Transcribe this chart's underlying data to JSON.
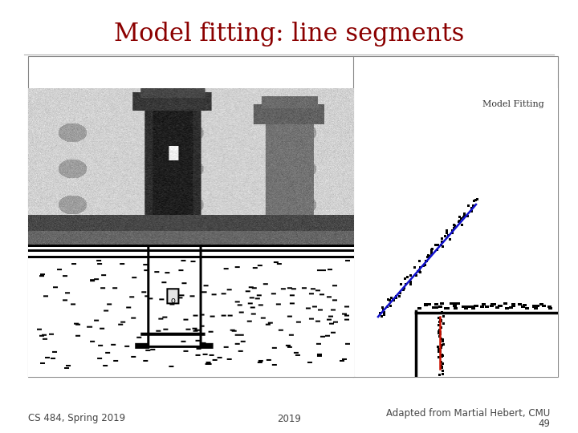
{
  "title": "Model fitting: line segments",
  "title_color": "#8B0000",
  "title_fontsize": 22,
  "footer_left": "CS 484, Spring 2019",
  "footer_center": "2019",
  "footer_right_line1": "Adapted from Martial Hebert, CMU",
  "footer_right_line2": "49",
  "footer_fontsize": 8.5,
  "bg_color": "#ffffff",
  "separator_color": "#b0b0b0"
}
